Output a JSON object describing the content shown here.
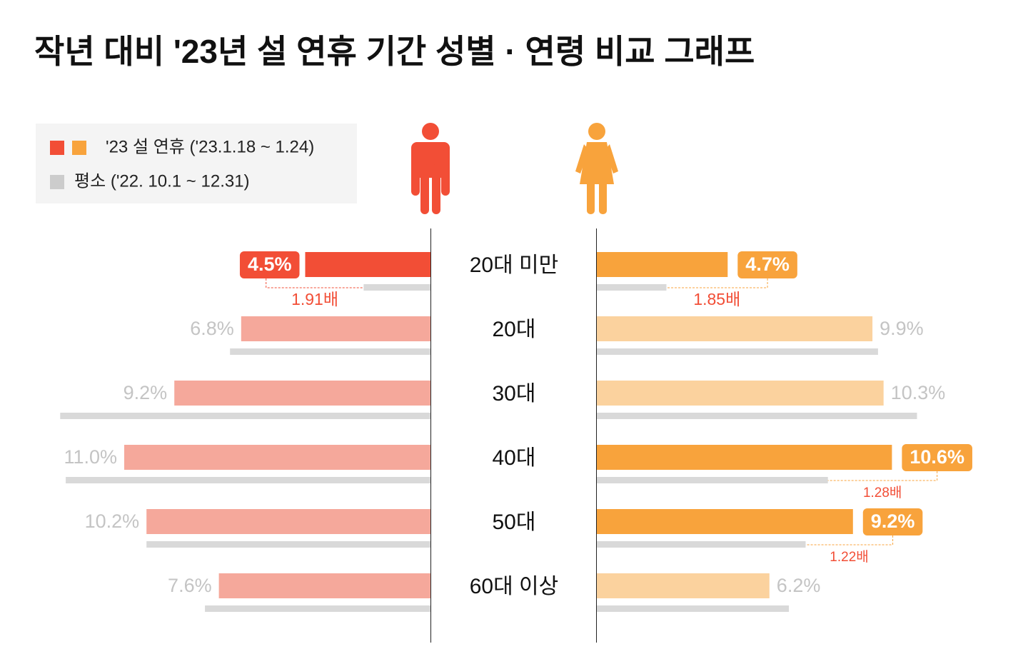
{
  "chart_data": {
    "type": "butterfly",
    "title": "작년 대비 '23년 설 연휴 기간 성별 · 연령 비교 그래프",
    "legend": [
      {
        "name": "'23 설 연휴 ('23.1.18 ~ 1.24)",
        "colors": [
          "#f24e36",
          "#f8a33c"
        ]
      },
      {
        "name": "평소 ('22. 10.1 ~ 12.31)",
        "colors": [
          "#cccccc"
        ]
      }
    ],
    "categories": [
      "20대 미만",
      "20대",
      "30대",
      "40대",
      "50대",
      "60대 이상"
    ],
    "xlim": [
      0,
      14
    ],
    "groups": [
      {
        "icon": "male",
        "current": {
          "color": "#f24e36",
          "faded_color": "#f5a89b",
          "values": [
            4.5,
            6.8,
            9.2,
            11.0,
            10.2,
            7.6
          ],
          "value_labels": [
            "4.5%",
            "6.8%",
            "9.2%",
            "11.0%",
            "10.2%",
            "7.6%"
          ],
          "highlight": [
            true,
            false,
            false,
            false,
            false,
            false
          ],
          "ratio_labels": [
            "1.91배",
            null,
            null,
            null,
            null,
            null
          ]
        },
        "normal": {
          "color": "#d9d9d9",
          "values": [
            2.4,
            7.2,
            13.3,
            13.1,
            10.2,
            8.1
          ]
        }
      },
      {
        "icon": "female",
        "current": {
          "color": "#f8a33c",
          "faded_color": "#fbd29e",
          "values": [
            4.7,
            9.9,
            10.3,
            10.6,
            9.2,
            6.2
          ],
          "value_labels": [
            "4.7%",
            "9.9%",
            "10.3%",
            "10.6%",
            "9.2%",
            "6.2%"
          ],
          "highlight": [
            true,
            false,
            false,
            true,
            true,
            false
          ],
          "ratio_labels": [
            "1.85배",
            null,
            null,
            "1.28배",
            "1.22배",
            null
          ]
        },
        "normal": {
          "color": "#d9d9d9",
          "values": [
            2.5,
            10.1,
            11.5,
            8.3,
            7.5,
            6.9
          ]
        }
      }
    ]
  }
}
